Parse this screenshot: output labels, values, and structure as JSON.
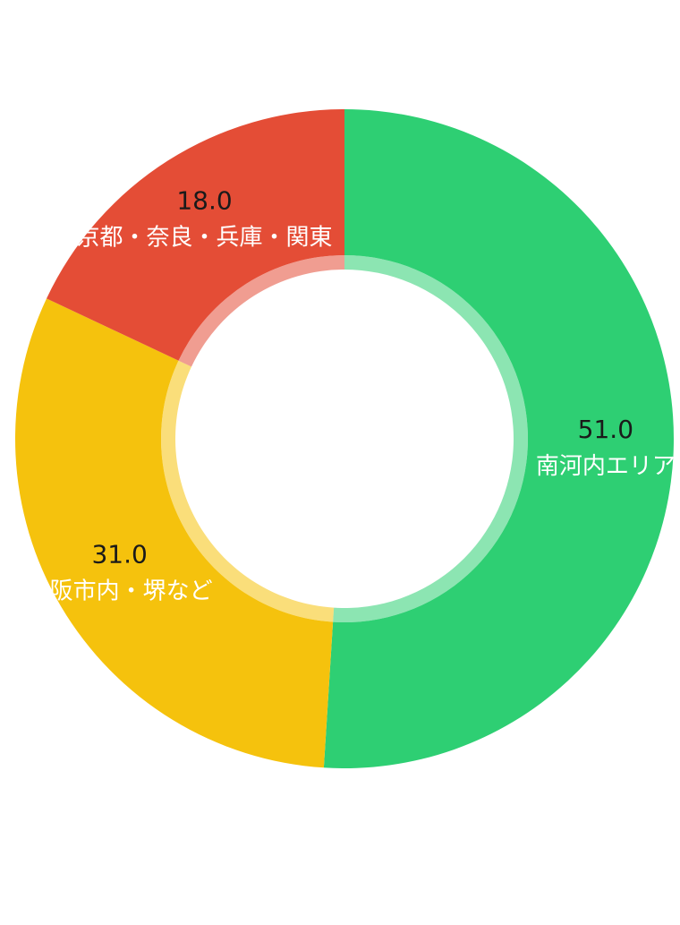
{
  "chart_data": {
    "type": "pie",
    "variant": "donut",
    "title": "",
    "categories": [
      "南河内エリア",
      "大阪市内・堺など",
      "京都・奈良・兵庫・関東"
    ],
    "values": [
      51.0,
      31.0,
      18.0
    ],
    "value_labels": [
      "51.0",
      "31.0",
      "18.0"
    ],
    "colors": [
      "#2ecf73",
      "#f5c20d",
      "#e44d36"
    ],
    "start": "12 o'clock, clockwise",
    "legend": "none",
    "labels_on_slices": true
  }
}
